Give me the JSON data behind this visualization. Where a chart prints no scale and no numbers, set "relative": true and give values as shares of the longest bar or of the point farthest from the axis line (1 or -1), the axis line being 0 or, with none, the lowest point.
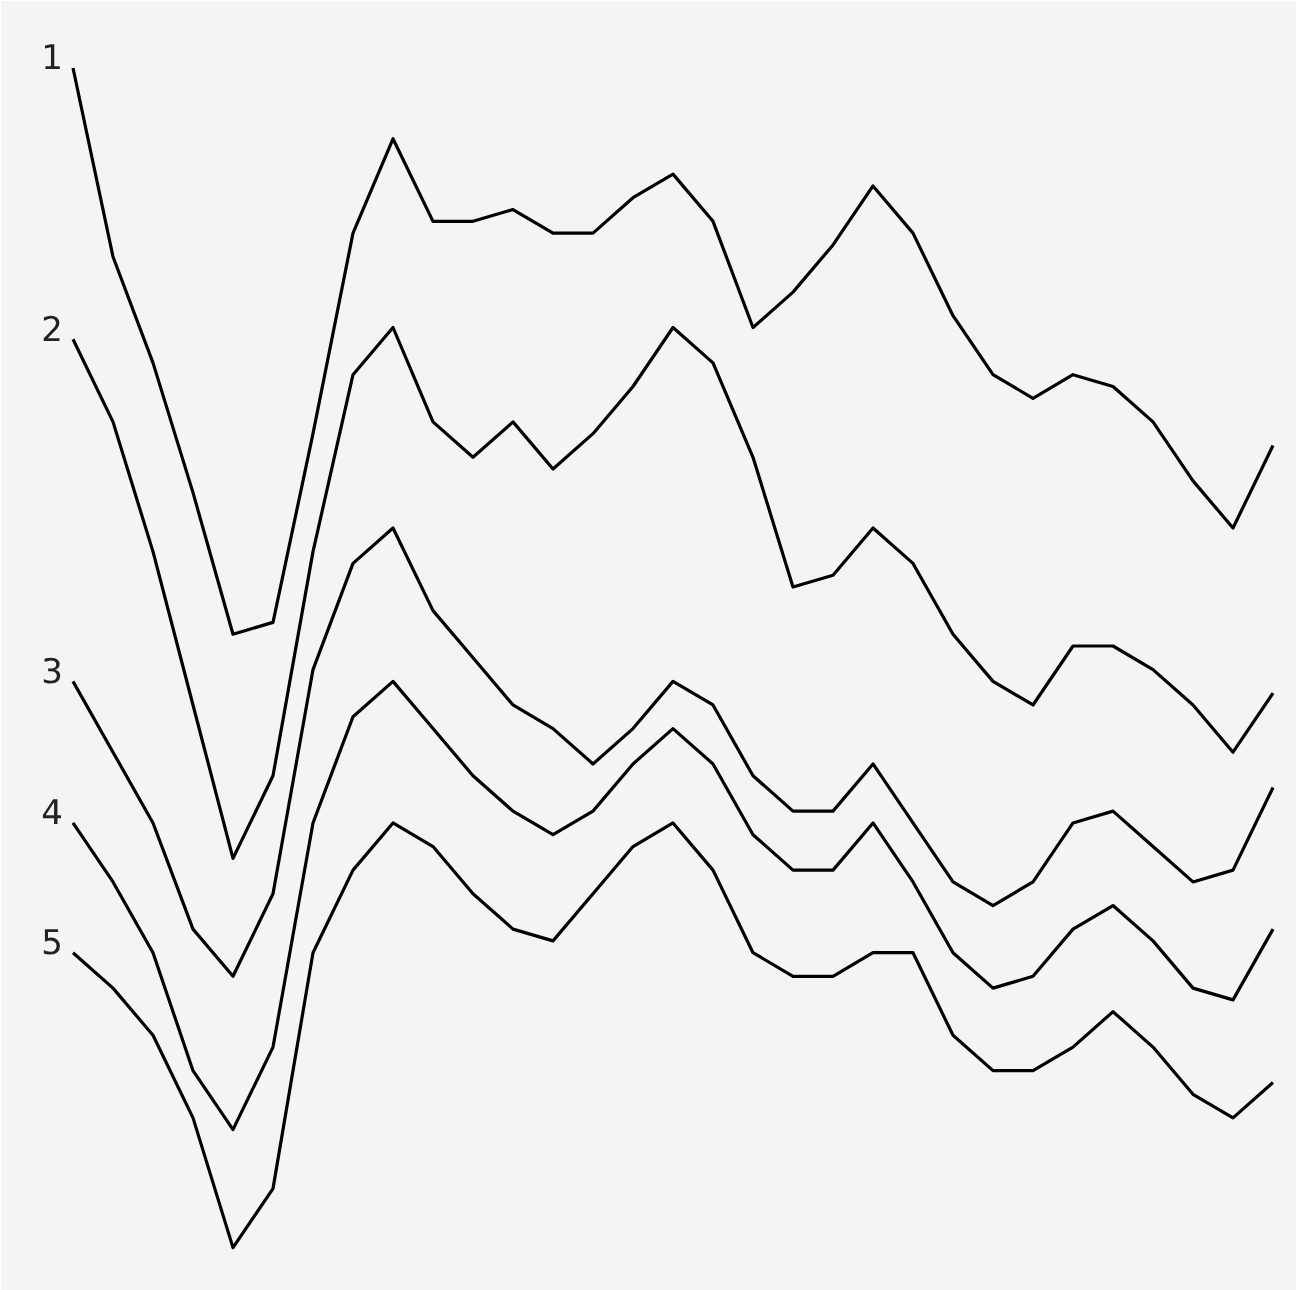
{
  "chart_data": {
    "type": "line",
    "relative": true,
    "categories": [
      null,
      null,
      null,
      null,
      null,
      null,
      null,
      null,
      null,
      null,
      null,
      null,
      null,
      null,
      null,
      null,
      null,
      null,
      null,
      null,
      null,
      null,
      null,
      null,
      null,
      null,
      null,
      null,
      null,
      null,
      null
    ],
    "series": [
      {
        "name": "1",
        "color": "#000000",
        "values": [
          1.0,
          0.84,
          0.75,
          0.64,
          0.52,
          0.53,
          0.69,
          0.86,
          0.94,
          0.87,
          0.87,
          0.88,
          0.86,
          0.86,
          0.89,
          0.91,
          0.87,
          0.78,
          0.81,
          0.85,
          0.9,
          0.86,
          0.79,
          0.74,
          0.72,
          0.74,
          0.73,
          0.7,
          0.65,
          0.61,
          0.68
        ]
      },
      {
        "name": "2",
        "color": "#000000",
        "values": [
          0.77,
          0.7,
          0.59,
          0.46,
          0.33,
          0.4,
          0.59,
          0.74,
          0.78,
          0.7,
          0.67,
          0.7,
          0.66,
          0.69,
          0.73,
          0.78,
          0.75,
          0.67,
          0.56,
          0.57,
          0.61,
          0.58,
          0.52,
          0.48,
          0.46,
          0.51,
          0.51,
          0.49,
          0.46,
          0.42,
          0.47
        ]
      },
      {
        "name": "3",
        "color": "#000000",
        "values": [
          0.48,
          0.42,
          0.36,
          0.27,
          0.23,
          0.3,
          0.49,
          0.58,
          0.61,
          0.54,
          0.5,
          0.46,
          0.44,
          0.41,
          0.44,
          0.48,
          0.46,
          0.4,
          0.37,
          0.37,
          0.41,
          0.36,
          0.31,
          0.29,
          0.31,
          0.36,
          0.37,
          0.34,
          0.31,
          0.32,
          0.39
        ]
      },
      {
        "name": "4",
        "color": "#000000",
        "values": [
          0.36,
          0.31,
          0.25,
          0.15,
          0.1,
          0.17,
          0.36,
          0.45,
          0.48,
          0.44,
          0.4,
          0.37,
          0.35,
          0.37,
          0.41,
          0.44,
          0.41,
          0.35,
          0.32,
          0.32,
          0.36,
          0.31,
          0.25,
          0.22,
          0.23,
          0.27,
          0.29,
          0.26,
          0.22,
          0.21,
          0.27
        ]
      },
      {
        "name": "5",
        "color": "#000000",
        "values": [
          0.25,
          0.22,
          0.18,
          0.11,
          0.0,
          0.05,
          0.25,
          0.32,
          0.36,
          0.34,
          0.3,
          0.27,
          0.26,
          0.3,
          0.34,
          0.36,
          0.32,
          0.25,
          0.23,
          0.23,
          0.25,
          0.25,
          0.18,
          0.15,
          0.15,
          0.17,
          0.2,
          0.17,
          0.13,
          0.11,
          0.14
        ]
      }
    ],
    "grid": false,
    "line_style": "solid",
    "marker": "none"
  }
}
